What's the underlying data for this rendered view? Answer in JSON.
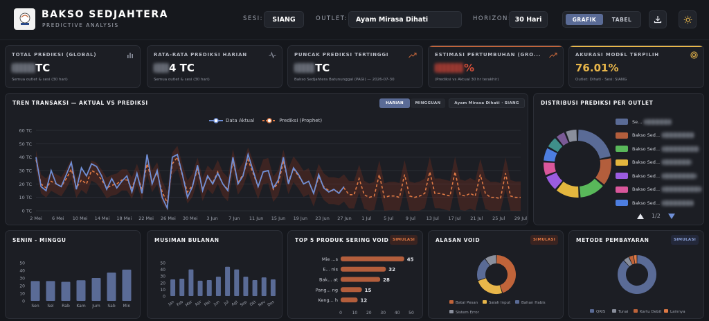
{
  "app": {
    "title": "BAKSO SEDJAHTERA",
    "subtitle": "PREDICTIVE ANALYSIS",
    "logo_text": "BAKSO SEDJAHTERA"
  },
  "filters": {
    "sesi_label": "SESI:",
    "sesi_value": "SIANG",
    "outlet_label": "OUTLET:",
    "outlet_value": "Ayam Mirasa Dihati",
    "horizon_label": "HORIZON:",
    "horizon_value": "30 Hari"
  },
  "view_toggle": {
    "grafik": "GRAFIK",
    "tabel": "TABEL",
    "active": "GRAFIK"
  },
  "icons": {
    "download": "download-icon",
    "theme": "sun-icon"
  },
  "kpis": [
    {
      "title": "TOTAL PREDIKSI (GLOBAL)",
      "value_suffix": "TC",
      "note": "Semua outlet & sesi (30 hari)",
      "icon": "bar-chart-icon",
      "accent": "#8a8f9c"
    },
    {
      "title": "RATA-RATA PREDIKSI HARIAN",
      "value_suffix": "4 TC",
      "note": "Semua outlet & sesi (30 hari)",
      "icon": "pulse-icon",
      "accent": "#8a8f9c"
    },
    {
      "title": "PUNCAK PREDIKSI TERTINGGI",
      "value_suffix": "TC",
      "note": "Bakso Sedjahtera Batununggal (PAGI) — 2026-07-30",
      "icon": "trend-up-icon",
      "accent": "#c0643a"
    },
    {
      "title": "ESTIMASI PERTUMBUHAN (GRO...",
      "value_suffix": "%",
      "note": "(Prediksi vs Aktual 30 hr terakhir)",
      "icon": "trend-up-icon",
      "accent": "#c0643a"
    },
    {
      "title": "AKURASI MODEL TERPILIH",
      "value": "76.01%",
      "note": "Outlet: Dihati · Sesi: SIANG",
      "icon": "target-icon",
      "accent": "#e8b64a"
    }
  ],
  "trend": {
    "title": "TREN TRANSAKSI — AKTUAL VS PREDIKSI",
    "tab_harian": "HARIAN",
    "tab_mingguan": "MINGGUAN",
    "context": "Ayam Mirasa Dihati · SIANG",
    "legend_actual": "Data Aktual",
    "legend_pred": "Prediksi (Prophet)"
  },
  "distribution": {
    "title": "DISTRIBUSI PREDIKSI PER OUTLET",
    "page": "1/2",
    "legend": [
      {
        "label": "Se...",
        "color": "#5a6b96"
      },
      {
        "label": "Bakso Sed...",
        "color": "#b35e3c"
      },
      {
        "label": "Bakso Sed...",
        "color": "#59b85a"
      },
      {
        "label": "Bakso Sed...",
        "color": "#e3b63e"
      },
      {
        "label": "Bakso Sed...",
        "color": "#9b5ce0"
      },
      {
        "label": "Bakso Sed...",
        "color": "#d9579b"
      },
      {
        "label": "Bakso Sed...",
        "color": "#4d7ee0"
      }
    ]
  },
  "chart_data": [
    {
      "type": "line",
      "title": "TREN TRANSAKSI — AKTUAL VS PREDIKSI",
      "y_ticks": [
        "0 TC",
        "10 TC",
        "20 TC",
        "30 TC",
        "40 TC",
        "50 TC",
        "60 TC"
      ],
      "ylim": [
        0,
        60
      ],
      "x_ticks": [
        "2 Mei",
        "6 Mei",
        "10 Mei",
        "14 Mei",
        "18 Mei",
        "22 Mei",
        "26 Mei",
        "30 Mei",
        "3 Jun",
        "7 Jun",
        "11 Jun",
        "15 Jun",
        "19 Jun",
        "23 Jun",
        "27 Jun",
        "1 Jul",
        "5 Jul",
        "9 Jul",
        "13 Jul",
        "17 Jul",
        "21 Jul",
        "25 Jul",
        "29 Jul"
      ],
      "series": [
        {
          "name": "Data Aktual",
          "color": "#6f8fd6",
          "values": [
            40,
            18,
            15,
            30,
            20,
            18,
            27,
            36,
            16,
            32,
            26,
            35,
            33,
            26,
            16,
            24,
            17,
            22,
            26,
            14,
            28,
            13,
            42,
            20,
            30,
            10,
            2,
            40,
            42,
            27,
            10,
            18,
            34,
            15,
            26,
            20,
            28,
            20,
            15,
            40,
            20,
            26,
            42,
            30,
            18,
            29,
            30,
            17,
            23,
            40,
            20,
            32,
            27,
            20,
            22,
            13,
            27,
            17,
            14,
            16,
            13,
            18
          ]
        },
        {
          "name": "Prediksi (Prophet)",
          "color": "#e07a45",
          "values": [
            38,
            20,
            17,
            22,
            20,
            18,
            24,
            31,
            17,
            23,
            20,
            30,
            28,
            23,
            17,
            19,
            20,
            23,
            23,
            17,
            27,
            16,
            35,
            22,
            28,
            14,
            6,
            35,
            40,
            26,
            14,
            19,
            31,
            16,
            25,
            21,
            29,
            20,
            16,
            37,
            21,
            27,
            38,
            28,
            18,
            29,
            30,
            16,
            21,
            36,
            22,
            31,
            26,
            20,
            22,
            13,
            25,
            18,
            15,
            15,
            14,
            17,
            12,
            12,
            24,
            12,
            10,
            11,
            27,
            10,
            11,
            11,
            10,
            27,
            11,
            10,
            11,
            13,
            29,
            13,
            13,
            12,
            11,
            29,
            12,
            11,
            13,
            11,
            27,
            13,
            10,
            10,
            9,
            28,
            11,
            10,
            10
          ]
        }
      ]
    },
    {
      "type": "pie",
      "title": "DISTRIBUSI PREDIKSI PER OUTLET",
      "values": [
        22,
        14,
        13,
        12,
        8,
        7,
        7,
        6,
        5,
        6
      ]
    },
    {
      "type": "bar",
      "title": "SENIN - MINGGU",
      "categories": [
        "Sen",
        "Sel",
        "Rab",
        "Kam",
        "Jum",
        "Sab",
        "Min"
      ],
      "values": [
        26,
        26,
        25,
        27,
        30,
        37,
        41
      ],
      "y_ticks": [
        "0",
        "10",
        "20",
        "30",
        "40",
        "50"
      ],
      "ylim": [
        0,
        50
      ]
    },
    {
      "type": "bar",
      "title": "MUSIMAN BULANAN",
      "categories": [
        "Jan",
        "Feb",
        "Mar",
        "Apr",
        "Mei",
        "Jun",
        "Jul",
        "Agt",
        "Sep",
        "Okt",
        "Nov",
        "Des"
      ],
      "values": [
        25,
        26,
        40,
        23,
        24,
        29,
        44,
        40,
        29,
        24,
        28,
        25
      ],
      "y_ticks": [
        "0",
        "10",
        "20",
        "30",
        "40",
        "50"
      ],
      "ylim": [
        0,
        50
      ]
    },
    {
      "type": "bar",
      "title": "TOP 5 PRODUK SERING VOID",
      "badge": "SIMULASI",
      "categories": [
        "Mie ...s",
        "E... nis",
        "Bak... at",
        "Pang... ng",
        "Keng... h"
      ],
      "values": [
        45,
        32,
        28,
        15,
        12
      ],
      "x_ticks": [
        "0",
        "10",
        "20",
        "30",
        "40",
        "50"
      ],
      "xlim": [
        0,
        50
      ]
    },
    {
      "type": "pie",
      "title": "ALASAN VOID",
      "badge": "SIMULASI",
      "categories": [
        "Batal Pesan",
        "Salah Input",
        "Bahan Habis",
        "Sistem Error"
      ],
      "colors": [
        "#c0643a",
        "#e8b64a",
        "#5a6b96",
        "#8a8f9c"
      ],
      "values": [
        45,
        25,
        20,
        10
      ]
    },
    {
      "type": "pie",
      "title": "METODE PEMBAYARAN",
      "badge": "SIMULASI",
      "categories": [
        "QRIS",
        "Tunai",
        "Kartu Debit",
        "Lainnya"
      ],
      "colors": [
        "#5a6b96",
        "#8a8f9c",
        "#c0643a",
        "#e07a45"
      ],
      "values": [
        88,
        5,
        4,
        3
      ]
    }
  ]
}
